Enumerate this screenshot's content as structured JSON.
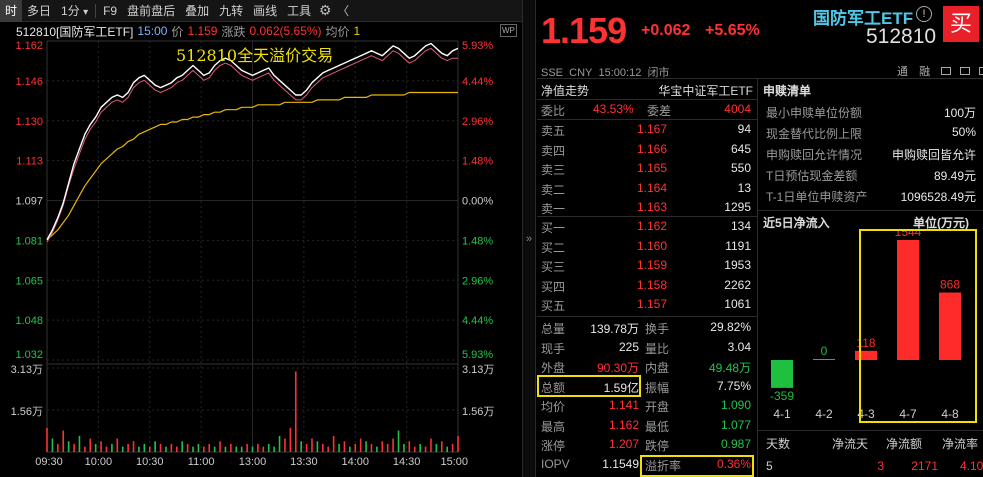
{
  "toolbar": {
    "items": [
      "时",
      "多日",
      "1分",
      "F9",
      "盘前盘后",
      "叠加",
      "九转",
      "画线",
      "工具"
    ],
    "dropdown_glyph": "▾",
    "gear_glyph": "⚙",
    "back_glyph": "〈"
  },
  "chart_header": {
    "code_name": "512810[国防军工ETF]",
    "time": "15:00",
    "price_label": "价",
    "price": "1.159",
    "change_label": "涨跌",
    "change": "0.062(5.65%)",
    "avg_label": "均价",
    "avg_value": "1",
    "annotation": "512810全天溢价交易",
    "corner_badge": "WP"
  },
  "colors": {
    "up": "#ff3232",
    "down": "#22c34a",
    "price_line": "#ffffff",
    "avg_line": "#e6b800",
    "highlight": "#f0e000"
  },
  "chart_data": {
    "type": "line",
    "y_left_ticks": [
      "1.162",
      "1.146",
      "1.130",
      "1.113",
      "1.097",
      "1.081",
      "1.065",
      "1.048",
      "1.032"
    ],
    "y_right_ticks": [
      "5.93%",
      "4.44%",
      "2.96%",
      "1.48%",
      "0.00%",
      "1.48%",
      "2.96%",
      "4.44%",
      "5.93%"
    ],
    "vol_left_ticks": [
      "3.13万",
      "1.56万"
    ],
    "vol_right_ticks": [
      "3.13万",
      "1.56万"
    ],
    "x_ticks": [
      "09:30",
      "10:00",
      "10:30",
      "11:00",
      "13:00",
      "13:30",
      "14:00",
      "14:30",
      "15:00"
    ],
    "ylim": [
      1.032,
      1.162
    ],
    "price_series": [
      1.081,
      1.085,
      1.09,
      1.096,
      1.104,
      1.112,
      1.118,
      1.124,
      1.128,
      1.131,
      1.135,
      1.137,
      1.139,
      1.14,
      1.139,
      1.141,
      1.145,
      1.147,
      1.148,
      1.146,
      1.144,
      1.143,
      1.144,
      1.145,
      1.147,
      1.148,
      1.15,
      1.152,
      1.15,
      1.148,
      1.149,
      1.152,
      1.154,
      1.155,
      1.154,
      1.152,
      1.15,
      1.149,
      1.148,
      1.149,
      1.15,
      1.151,
      1.148,
      1.146,
      1.144,
      1.142,
      1.14,
      1.14,
      1.142,
      1.145,
      1.147,
      1.149,
      1.15,
      1.151,
      1.152,
      1.153,
      1.154,
      1.155,
      1.156,
      1.157,
      1.158,
      1.157,
      1.156,
      1.158,
      1.16,
      1.159,
      1.157,
      1.155,
      1.156,
      1.158,
      1.16,
      1.161,
      1.159,
      1.157,
      1.156,
      1.158,
      1.159
    ],
    "iopv_series": [
      1.08,
      1.084,
      1.089,
      1.095,
      1.103,
      1.11,
      1.116,
      1.122,
      1.126,
      1.129,
      1.133,
      1.135,
      1.137,
      1.138,
      1.137,
      1.139,
      1.143,
      1.145,
      1.146,
      1.144,
      1.142,
      1.141,
      1.142,
      1.143,
      1.145,
      1.146,
      1.148,
      1.15,
      1.148,
      1.146,
      1.147,
      1.15,
      1.152,
      1.153,
      1.152,
      1.15,
      1.148,
      1.147,
      1.146,
      1.147,
      1.148,
      1.149,
      1.146,
      1.144,
      1.142,
      1.14,
      1.138,
      1.138,
      1.14,
      1.143,
      1.145,
      1.147,
      1.148,
      1.149,
      1.15,
      1.151,
      1.152,
      1.153,
      1.154,
      1.155,
      1.156,
      1.155,
      1.154,
      1.156,
      1.158,
      1.157,
      1.155,
      1.153,
      1.154,
      1.156,
      1.158,
      1.159,
      1.157,
      1.155,
      1.154,
      1.155,
      1.155
    ],
    "avg_series": [
      1.081,
      1.083,
      1.085,
      1.088,
      1.091,
      1.095,
      1.099,
      1.103,
      1.106,
      1.109,
      1.112,
      1.114,
      1.116,
      1.118,
      1.119,
      1.121,
      1.122,
      1.124,
      1.125,
      1.126,
      1.127,
      1.128,
      1.128,
      1.129,
      1.129,
      1.13,
      1.13,
      1.131,
      1.131,
      1.132,
      1.132,
      1.133,
      1.133,
      1.134,
      1.134,
      1.134,
      1.135,
      1.135,
      1.135,
      1.136,
      1.136,
      1.136,
      1.136,
      1.136,
      1.137,
      1.137,
      1.137,
      1.137,
      1.137,
      1.137,
      1.138,
      1.138,
      1.138,
      1.138,
      1.138,
      1.139,
      1.139,
      1.139,
      1.139,
      1.139,
      1.14,
      1.14,
      1.14,
      1.14,
      1.14,
      1.14,
      1.14,
      1.141,
      1.141,
      1.141,
      1.141,
      1.141,
      1.141,
      1.141,
      1.141,
      1.141,
      1.141
    ],
    "volume": [
      0.9,
      0.5,
      0.3,
      0.8,
      0.4,
      0.3,
      0.6,
      0.2,
      0.5,
      0.3,
      0.4,
      0.2,
      0.3,
      0.5,
      0.2,
      0.3,
      0.4,
      0.2,
      0.3,
      0.2,
      0.4,
      0.3,
      0.2,
      0.3,
      0.2,
      0.4,
      0.3,
      0.2,
      0.3,
      0.2,
      0.3,
      0.2,
      0.4,
      0.2,
      0.3,
      0.2,
      0.2,
      0.3,
      0.2,
      0.3,
      0.2,
      0.3,
      0.2,
      0.6,
      0.5,
      0.9,
      3.0,
      0.4,
      0.3,
      0.5,
      0.4,
      0.3,
      0.2,
      0.6,
      0.3,
      0.4,
      0.2,
      0.3,
      0.5,
      0.4,
      0.3,
      0.2,
      0.4,
      0.3,
      0.5,
      0.8,
      0.3,
      0.4,
      0.2,
      0.3,
      0.2,
      0.5,
      0.3,
      0.4,
      0.2,
      0.3,
      0.6
    ],
    "volume_up": [
      1,
      0,
      1,
      1,
      0,
      1,
      0,
      1,
      1,
      0,
      1,
      1,
      0,
      1,
      0,
      1,
      1,
      0,
      0,
      1,
      0,
      1,
      0,
      1,
      1,
      0,
      1,
      0,
      0,
      1,
      1,
      0,
      1,
      0,
      1,
      0,
      0,
      1,
      0,
      1,
      1,
      0,
      0,
      0,
      1,
      1,
      1,
      0,
      1,
      1,
      0,
      1,
      1,
      1,
      0,
      1,
      0,
      1,
      1,
      0,
      1,
      0,
      1,
      1,
      1,
      0,
      0,
      1,
      1,
      0,
      1,
      1,
      0,
      1,
      0,
      1,
      1
    ]
  },
  "quote": {
    "name": "国防军工ETF",
    "code": "512810",
    "price": "1.159",
    "change": "+0.062",
    "change_pct": "+5.65%",
    "buy_button": "买",
    "market": "SSE",
    "currency": "CNY",
    "time": "15:00:12",
    "status": "闭市",
    "tool_icons": [
      "通",
      "融"
    ]
  },
  "tabs": {
    "left": "净值走势",
    "right": "华宝中证军工ETF"
  },
  "order_book": {
    "weibi_label": "委比",
    "weibi": "43.53%",
    "weicha_label": "委差",
    "weicha": "4004",
    "sells": [
      {
        "label": "卖五",
        "price": "1.167",
        "vol": "94"
      },
      {
        "label": "卖四",
        "price": "1.166",
        "vol": "645"
      },
      {
        "label": "卖三",
        "price": "1.165",
        "vol": "550"
      },
      {
        "label": "卖二",
        "price": "1.164",
        "vol": "13"
      },
      {
        "label": "卖一",
        "price": "1.163",
        "vol": "1295"
      }
    ],
    "buys": [
      {
        "label": "买一",
        "price": "1.162",
        "vol": "134"
      },
      {
        "label": "买二",
        "price": "1.160",
        "vol": "1191"
      },
      {
        "label": "买三",
        "price": "1.159",
        "vol": "1953"
      },
      {
        "label": "买四",
        "price": "1.158",
        "vol": "2262"
      },
      {
        "label": "买五",
        "price": "1.157",
        "vol": "1061"
      }
    ]
  },
  "stats": [
    {
      "l1": "总量",
      "v1": "139.78万",
      "c1": "white",
      "l2": "换手",
      "v2": "29.82%",
      "c2": "white"
    },
    {
      "l1": "现手",
      "v1": "225",
      "c1": "white",
      "l2": "量比",
      "v2": "3.04",
      "c2": "white"
    },
    {
      "l1": "外盘",
      "v1": "90.30万",
      "c1": "red",
      "l2": "内盘",
      "v2": "49.48万",
      "c2": "green"
    },
    {
      "l1": "总额",
      "v1": "1.59亿",
      "c1": "white",
      "l2": "振幅",
      "v2": "7.75%",
      "c2": "white"
    },
    {
      "l1": "均价",
      "v1": "1.141",
      "c1": "red",
      "l2": "开盘",
      "v2": "1.090",
      "c2": "green"
    },
    {
      "l1": "最高",
      "v1": "1.162",
      "c1": "red",
      "l2": "最低",
      "v2": "1.077",
      "c2": "green"
    },
    {
      "l1": "涨停",
      "v1": "1.207",
      "c1": "red",
      "l2": "跌停",
      "v2": "0.987",
      "c2": "green"
    },
    {
      "l1": "IOPV",
      "v1": "1.1549",
      "c1": "white",
      "l2": "溢折率",
      "v2": "0.36%",
      "c2": "red"
    }
  ],
  "subscription": {
    "title": "申赎清单",
    "rows": [
      {
        "label": "最小申赎单位份额",
        "value": "100万"
      },
      {
        "label": "现金替代比例上限",
        "value": "50%"
      },
      {
        "label": "申购赎回允许情况",
        "value": "申购赎回皆允许"
      },
      {
        "label": "T日预估现金差额",
        "value": "89.49元"
      },
      {
        "label": "T-1日单位申赎资产",
        "value": "1096528.49元"
      }
    ]
  },
  "netflow": {
    "title": "近5日净流入",
    "unit": "单位(万元)",
    "bars": [
      {
        "date": "4-1",
        "value": -359,
        "label": "-359"
      },
      {
        "date": "4-2",
        "value": 0,
        "label": "0"
      },
      {
        "date": "4-3",
        "value": 118,
        "label": "118"
      },
      {
        "date": "4-7",
        "value": 1544,
        "label": "1544"
      },
      {
        "date": "4-8",
        "value": 868,
        "label": "868"
      }
    ],
    "summary_headers": [
      "天数",
      "净流天",
      "净流额",
      "净流率"
    ],
    "summary_values": [
      "5",
      "3",
      "2171",
      "4.10%"
    ]
  }
}
